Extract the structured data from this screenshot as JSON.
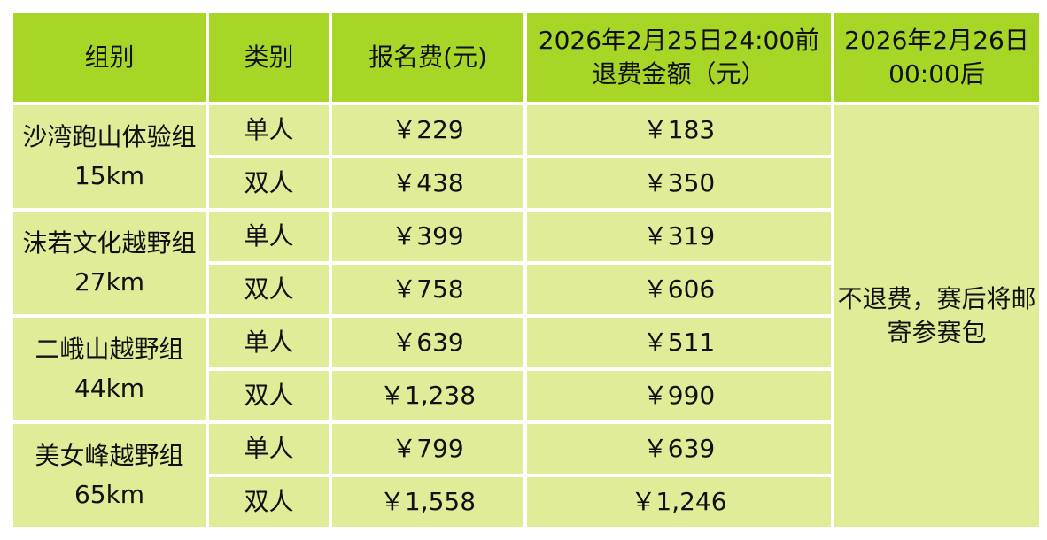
{
  "header": [
    "组别",
    "类别",
    "报名费(元)",
    "2026年2月25日24:00前退费金额（元）",
    "2026年2月26日00:00后"
  ],
  "groups": [
    {
      "name": "沙湾跑山体验组15km",
      "rows": [
        {
          "type": "单人",
          "fee": "￥229",
          "refund": "￥183"
        },
        {
          "type": "双人",
          "fee": "￥438",
          "refund": "￥350"
        }
      ]
    },
    {
      "name": "沫若文化越野组27km",
      "rows": [
        {
          "type": "单人",
          "fee": "￥399",
          "refund": "￥319"
        },
        {
          "type": "双人",
          "fee": "￥758",
          "refund": "￥606"
        }
      ]
    },
    {
      "name": "二峨山越野组44km",
      "rows": [
        {
          "type": "单人",
          "fee": "￥639",
          "refund": "￥511"
        },
        {
          "type": "双人",
          "fee": "￥1,238",
          "refund": "￥990"
        }
      ]
    },
    {
      "name": "美女峰越野组65km",
      "rows": [
        {
          "type": "单人",
          "fee": "￥799",
          "refund": "￥639"
        },
        {
          "type": "双人",
          "fee": "￥1,558",
          "refund": "￥1,246"
        }
      ]
    }
  ],
  "after_note": "不退费，赛后将邮寄参赛包",
  "colors": {
    "header_bg": "#a8d626",
    "body_bg": "#e0ec98"
  }
}
